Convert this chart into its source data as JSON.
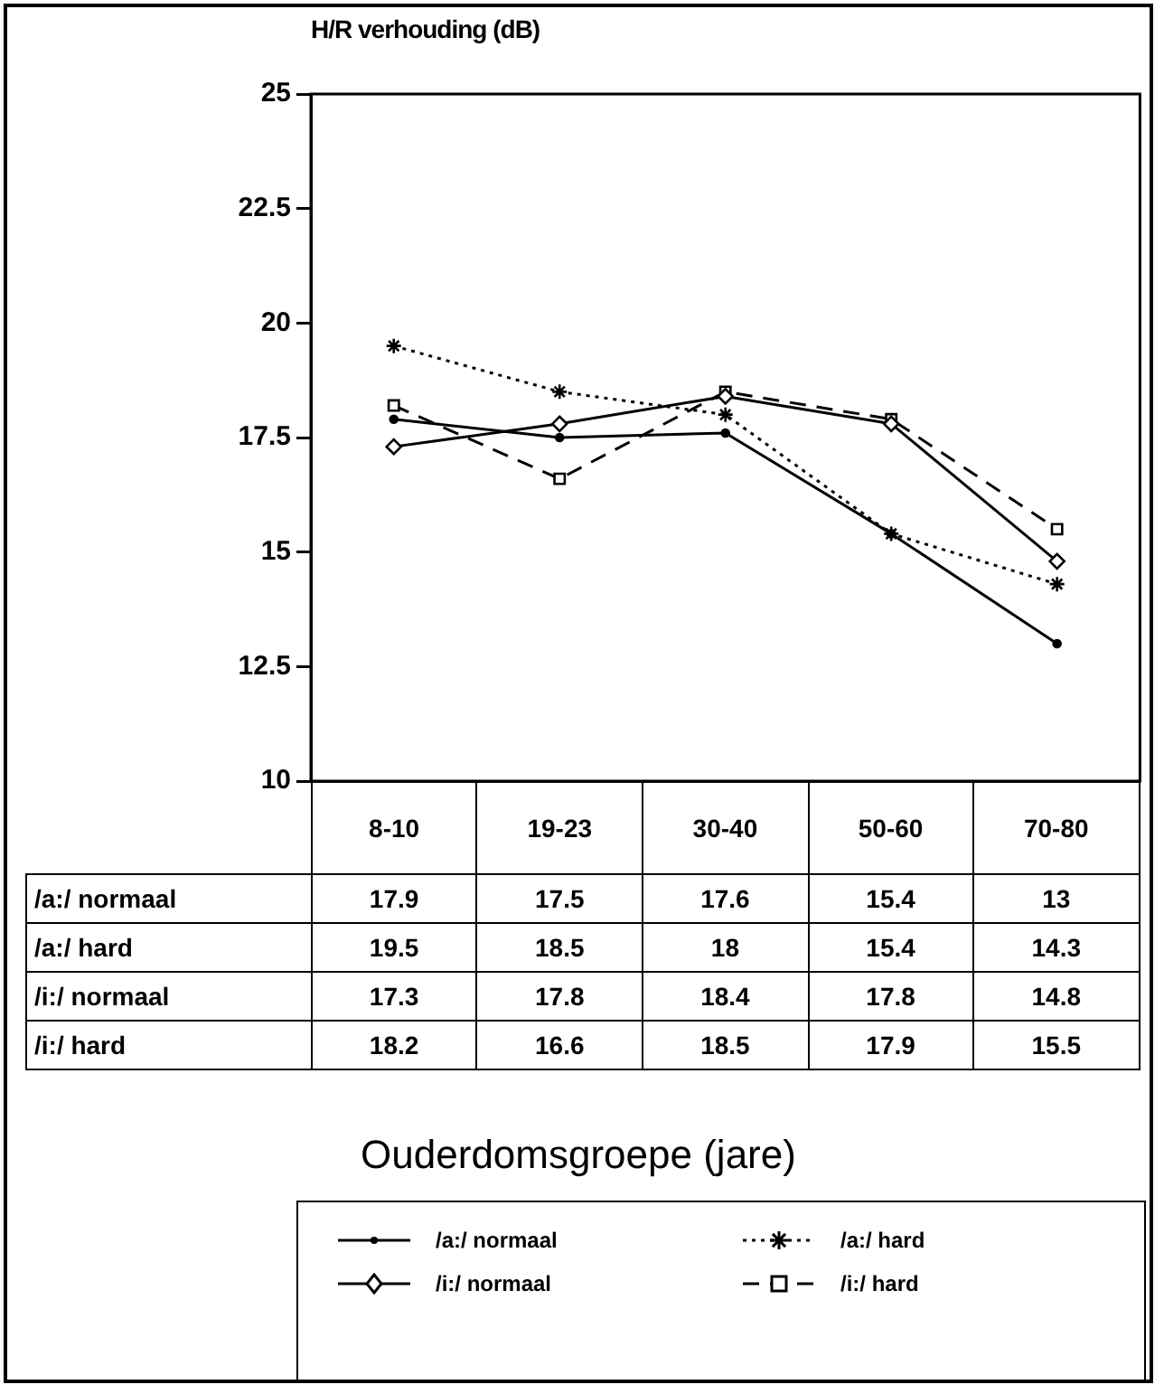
{
  "chart_data": {
    "type": "line",
    "ylabel": "H/R verhouding (dB)",
    "annotations": [
      "Ouderdomsgroepe (jare)"
    ],
    "categories": [
      "8-10",
      "19-23",
      "30-40",
      "50-60",
      "70-80"
    ],
    "ylim": [
      10,
      25
    ],
    "yticks": [
      10,
      12.5,
      15,
      17.5,
      20,
      22.5,
      25
    ],
    "grid": false,
    "legend": "bottom",
    "data_labels": true,
    "series": [
      {
        "name": "/a:/ normaal",
        "color": "#000000",
        "values": [
          17.9,
          17.5,
          17.6,
          15.4,
          13
        ],
        "marker": "circle",
        "line_style": "solid"
      },
      {
        "name": "/a:/ hard",
        "color": "#000000",
        "values": [
          19.5,
          18.5,
          18,
          15.4,
          14.3
        ],
        "marker": "cross",
        "line_style": "dotted"
      },
      {
        "name": "/i:/ normaal",
        "color": "#000000",
        "values": [
          17.3,
          17.8,
          18.4,
          17.8,
          14.8
        ],
        "marker": "diamond",
        "line_style": "solid"
      },
      {
        "name": "/i:/ hard",
        "color": "#000000",
        "values": [
          18.2,
          16.6,
          18.5,
          17.9,
          15.5
        ],
        "marker": "square",
        "line_style": "dashed"
      }
    ]
  }
}
